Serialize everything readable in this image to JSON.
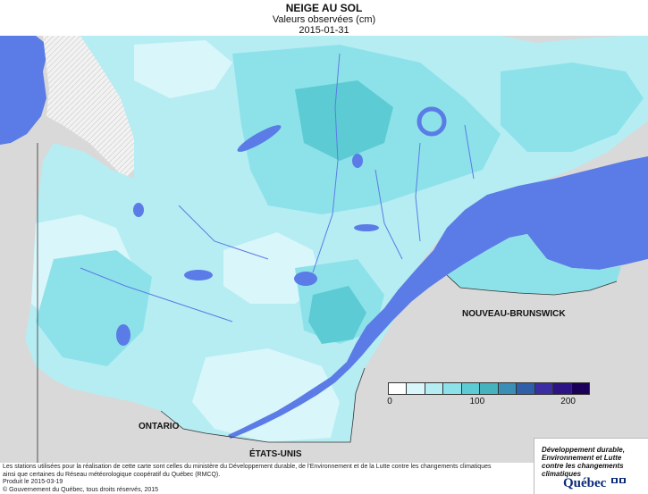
{
  "header": {
    "title": "NEIGE AU SOL",
    "subtitle": "Valeurs observées (cm)",
    "date": "2015-01-31"
  },
  "map": {
    "labels": {
      "ontario": "ONTARIO",
      "usa": "ÉTATS-UNIS",
      "nb": "NOUVEAU-BRUNSWICK"
    },
    "colors": {
      "water": "#5b7be6",
      "outside_land": "#d9d9d9",
      "no_data": "#f2f2f2",
      "border_line": "#333333"
    }
  },
  "legend": {
    "colors": [
      "#ffffff",
      "#d9f6fa",
      "#b5edf3",
      "#8de2ea",
      "#5ccbd3",
      "#45b3bd",
      "#3b8fb7",
      "#2f5fa8",
      "#3b2ea3",
      "#2d1484",
      "#1a0057"
    ],
    "ticks": [
      "0",
      "100",
      "200"
    ],
    "tick_values": [
      0,
      100,
      200
    ]
  },
  "logo": {
    "tagline_1": "Développement durable,",
    "tagline_2": "Environnement et Lutte",
    "tagline_3": "contre les changements",
    "tagline_4": "climatiques",
    "wordmark": "Québec"
  },
  "footer": {
    "line1": "Les stations utilisées pour la réalisation de cette carte sont celles du ministère du Développement durable, de l'Environnement et de la Lutte contre les changements climatiques",
    "line2": "ainsi que certaines du Réseau météorologique coopératif du Québec (RMCQ).",
    "line3": "Produit le 2015-03-19",
    "line4": "© Gouvernement du Québec, tous droits réservés, 2015"
  }
}
